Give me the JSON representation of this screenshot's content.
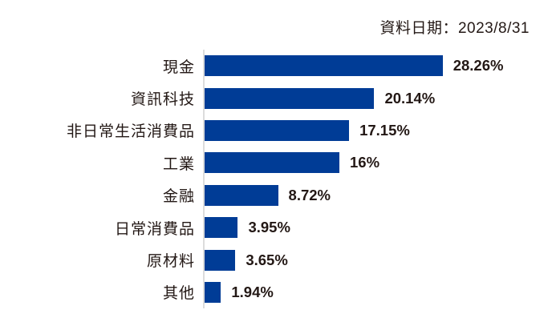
{
  "header": {
    "date_label": "資料日期：2023/8/31"
  },
  "colors": {
    "bar": "#003C96",
    "text": "#231815",
    "axis": "#DCDCDC"
  },
  "chart_data": {
    "type": "bar",
    "orientation": "horizontal",
    "title": "",
    "xlabel": "",
    "ylabel": "",
    "categories": [
      "現金",
      "資訊科技",
      "非日常生活消費品",
      "工業",
      "金融",
      "日常消費品",
      "原材料",
      "其他"
    ],
    "values": [
      28.26,
      20.14,
      17.15,
      16,
      8.72,
      3.95,
      3.65,
      1.94
    ],
    "value_labels": [
      "28.26%",
      "20.14%",
      "17.15%",
      "16%",
      "8.72%",
      "3.95%",
      "3.65%",
      "1.94%"
    ],
    "unit": "%",
    "xlim": [
      0,
      30
    ],
    "grid": false,
    "legend": false,
    "value_label_position": "end-of-bar"
  }
}
